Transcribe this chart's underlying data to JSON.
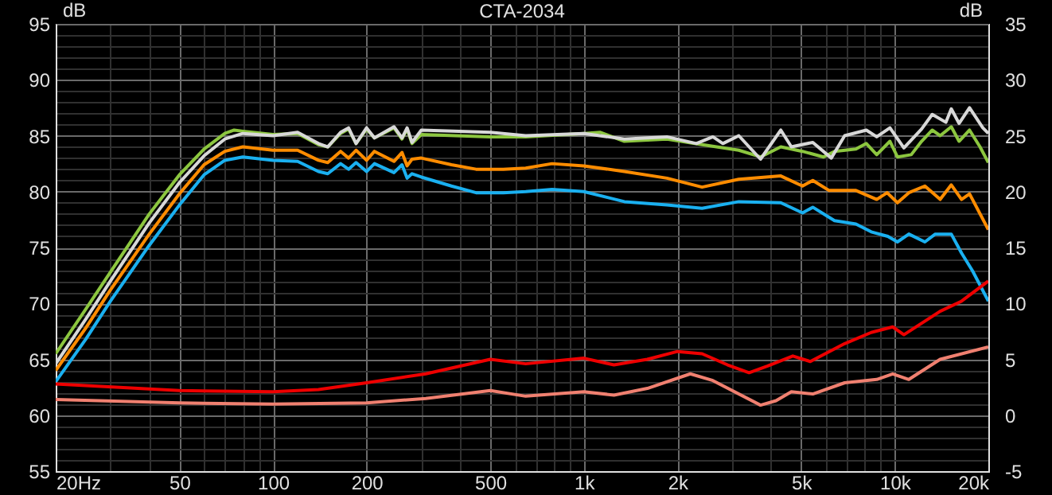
{
  "chart_data": {
    "type": "line",
    "title": "CTA-2034",
    "ylabel": "dB",
    "y2label": "dB",
    "log": "x",
    "grid": true,
    "xlim": [
      20,
      20000
    ],
    "xticks": [
      {
        "value": 20,
        "label": "20Hz"
      },
      {
        "value": 30,
        "label": null
      },
      {
        "value": 40,
        "label": null
      },
      50,
      {
        "value": 60,
        "label": null
      },
      {
        "value": 70,
        "label": null
      },
      {
        "value": 80,
        "label": null
      },
      {
        "value": 90,
        "label": null
      },
      100,
      200,
      {
        "value": 300,
        "label": null
      },
      {
        "value": 400,
        "label": null
      },
      500,
      {
        "value": 600,
        "label": null
      },
      {
        "value": 700,
        "label": null
      },
      {
        "value": 800,
        "label": null
      },
      {
        "value": 900,
        "label": null
      },
      {
        "value": 1000,
        "label": "1k"
      },
      {
        "value": 2000,
        "label": "2k"
      },
      {
        "value": 3000,
        "label": null
      },
      {
        "value": 4000,
        "label": null
      },
      {
        "value": 5000,
        "label": "5k"
      },
      {
        "value": 6000,
        "label": null
      },
      {
        "value": 7000,
        "label": null
      },
      {
        "value": 8000,
        "label": null
      },
      {
        "value": 9000,
        "label": null
      },
      {
        "value": 10000,
        "label": "10k"
      },
      {
        "value": 20000,
        "label": "20k"
      }
    ],
    "ylim": [
      55,
      95
    ],
    "yticks": [
      55,
      {
        "value": 56,
        "label": null
      },
      {
        "value": 57,
        "label": null
      },
      {
        "value": 58,
        "label": null
      },
      {
        "value": 59,
        "label": null
      },
      60,
      {
        "value": 61,
        "label": null
      },
      {
        "value": 62,
        "label": null
      },
      {
        "value": 63,
        "label": null
      },
      {
        "value": 64,
        "label": null
      },
      65,
      {
        "value": 66,
        "label": null
      },
      {
        "value": 67,
        "label": null
      },
      {
        "value": 68,
        "label": null
      },
      {
        "value": 69,
        "label": null
      },
      70,
      {
        "value": 71,
        "label": null
      },
      {
        "value": 72,
        "label": null
      },
      {
        "value": 73,
        "label": null
      },
      {
        "value": 74,
        "label": null
      },
      75,
      {
        "value": 76,
        "label": null
      },
      {
        "value": 77,
        "label": null
      },
      {
        "value": 78,
        "label": null
      },
      {
        "value": 79,
        "label": null
      },
      80,
      {
        "value": 81,
        "label": null
      },
      {
        "value": 82,
        "label": null
      },
      {
        "value": 83,
        "label": null
      },
      {
        "value": 84,
        "label": null
      },
      85,
      {
        "value": 86,
        "label": null
      },
      {
        "value": 87,
        "label": null
      },
      {
        "value": 88,
        "label": null
      },
      {
        "value": 89,
        "label": null
      },
      90,
      {
        "value": 91,
        "label": null
      },
      {
        "value": 92,
        "label": null
      },
      {
        "value": 93,
        "label": null
      },
      {
        "value": 94,
        "label": null
      },
      95
    ],
    "y2lim": [
      -5,
      35
    ],
    "y2ticks": [
      -5,
      0,
      5,
      10,
      15,
      20,
      25,
      30,
      35
    ],
    "series": [
      {
        "color": "#1ab0f0",
        "x": [
          20,
          25,
          30,
          40,
          50,
          60,
          70,
          80,
          100,
          120,
          140,
          150,
          165,
          175,
          185,
          200,
          212,
          245,
          260,
          270,
          280,
          300,
          375,
          450,
          550,
          650,
          790,
          1000,
          1350,
          1850,
          2400,
          3150,
          4300,
          5050,
          5450,
          6400,
          7500,
          8400,
          9500,
          10200,
          11100,
          12500,
          13500,
          15200,
          16400,
          17800,
          20000
        ],
        "values": [
          63,
          66.8,
          70.2,
          75.2,
          78.8,
          81.5,
          82.8,
          83.1,
          82.8,
          82.7,
          81.8,
          81.6,
          82.5,
          82.0,
          82.6,
          81.8,
          82.5,
          81.7,
          82.4,
          81.2,
          81.6,
          81.3,
          80.5,
          79.9,
          79.9,
          80,
          80.2,
          80,
          79.1,
          78.8,
          78.5,
          79.1,
          79,
          78.1,
          78.6,
          77.4,
          77.1,
          76.4,
          76,
          75.5,
          76.2,
          75.5,
          76.2,
          76.2,
          74.5,
          72.9,
          70.2
        ]
      },
      {
        "color": "#ff8c00",
        "x": [
          20,
          25,
          30,
          40,
          50,
          60,
          70,
          80,
          100,
          120,
          140,
          150,
          165,
          175,
          185,
          200,
          212,
          245,
          260,
          270,
          280,
          300,
          375,
          450,
          550,
          650,
          790,
          1000,
          1350,
          1850,
          2400,
          3150,
          4300,
          5050,
          5450,
          6150,
          7500,
          8750,
          9450,
          10200,
          11100,
          12500,
          14000,
          15200,
          16400,
          17400,
          20000
        ],
        "values": [
          64,
          67.8,
          71.2,
          76.2,
          79.8,
          82.4,
          83.6,
          84,
          83.7,
          83.7,
          82.8,
          82.6,
          83.6,
          83.0,
          83.7,
          82.8,
          83.6,
          82.7,
          83.5,
          82.3,
          82.9,
          83,
          82.4,
          82,
          82,
          82.1,
          82.5,
          82.3,
          81.8,
          81.2,
          80.4,
          81.1,
          81.4,
          80.5,
          81,
          80.1,
          80.1,
          79.3,
          79.9,
          79,
          79.9,
          80.5,
          79.3,
          80.6,
          79.3,
          79.8,
          76.6
        ]
      },
      {
        "color": "#8cc63f",
        "x": [
          20,
          25,
          30,
          40,
          50,
          60,
          70,
          75,
          80,
          100,
          120,
          140,
          150,
          165,
          175,
          185,
          200,
          212,
          245,
          260,
          270,
          280,
          300,
          500,
          650,
          1000,
          1130,
          1350,
          1850,
          2400,
          3150,
          3700,
          4300,
          5050,
          5900,
          6400,
          7500,
          8100,
          8750,
          9650,
          10200,
          11300,
          12200,
          13200,
          14000,
          15200,
          16100,
          17400,
          18800,
          20000
        ],
        "values": [
          65.5,
          69.5,
          72.8,
          78,
          81.5,
          83.8,
          85.2,
          85.5,
          85.4,
          85.1,
          85.2,
          84.2,
          84.0,
          85.2,
          85.6,
          84.3,
          85.6,
          84.8,
          85.7,
          84.7,
          85.6,
          84.3,
          85.1,
          84.9,
          84.9,
          85.2,
          85.3,
          84.5,
          84.7,
          84.2,
          83.7,
          83.1,
          84,
          83.6,
          83.1,
          83.6,
          83.8,
          84.3,
          83.3,
          84.5,
          83.1,
          83.3,
          84.5,
          85.5,
          85,
          85.8,
          84.5,
          85.5,
          84,
          82.6
        ]
      },
      {
        "color": "#d8d8d8",
        "x": [
          20,
          25,
          30,
          40,
          50,
          60,
          70,
          80,
          100,
          120,
          140,
          150,
          165,
          175,
          185,
          200,
          212,
          245,
          260,
          270,
          280,
          300,
          500,
          650,
          1000,
          1350,
          1850,
          2300,
          2600,
          2800,
          3150,
          3700,
          4300,
          4650,
          5450,
          6250,
          6900,
          8100,
          8750,
          9650,
          10700,
          12200,
          13200,
          14600,
          15200,
          16100,
          17400,
          19200,
          20000
        ],
        "values": [
          64.6,
          68.6,
          72,
          77.2,
          80.8,
          83.2,
          84.7,
          85.2,
          85.0,
          85.3,
          84.3,
          84.0,
          85.3,
          85.7,
          84.3,
          85.7,
          84.8,
          85.8,
          84.8,
          85.7,
          84.4,
          85.5,
          85.3,
          85,
          85.2,
          84.7,
          84.9,
          84.3,
          84.9,
          84.3,
          85,
          82.9,
          85.5,
          84,
          84.4,
          83,
          85,
          85.5,
          84.9,
          85.7,
          83.9,
          85.6,
          86.9,
          86.2,
          87.4,
          86.1,
          87.5,
          85.7,
          85.2
        ]
      },
      {
        "axis": "y2",
        "color": "#ee0000",
        "x": [
          20,
          50,
          100,
          140,
          200,
          310,
          500,
          650,
          1000,
          1250,
          1600,
          2000,
          2400,
          2900,
          3400,
          3900,
          4700,
          5350,
          6900,
          8400,
          9850,
          10700,
          14000,
          16400,
          20000
        ],
        "values": [
          2.8,
          2.2,
          2.1,
          2.3,
          2.9,
          3.7,
          5,
          4.6,
          5.1,
          4.5,
          5,
          5.7,
          5.5,
          4.5,
          3.8,
          4.4,
          5.3,
          4.8,
          6.4,
          7.4,
          7.9,
          7.2,
          9.3,
          10.2,
          12
        ]
      },
      {
        "axis": "y2",
        "color": "#f08070",
        "x": [
          20,
          50,
          100,
          200,
          310,
          500,
          650,
          1000,
          1250,
          1600,
          2200,
          2600,
          3700,
          4150,
          4650,
          5450,
          6900,
          8750,
          9850,
          11100,
          14000,
          20000
        ],
        "values": [
          1.4,
          1.1,
          1,
          1.1,
          1.5,
          2.2,
          1.7,
          2.1,
          1.8,
          2.4,
          3.7,
          3.1,
          0.9,
          1.3,
          2.1,
          1.9,
          2.9,
          3.2,
          3.7,
          3.2,
          5,
          6.1
        ]
      }
    ]
  }
}
